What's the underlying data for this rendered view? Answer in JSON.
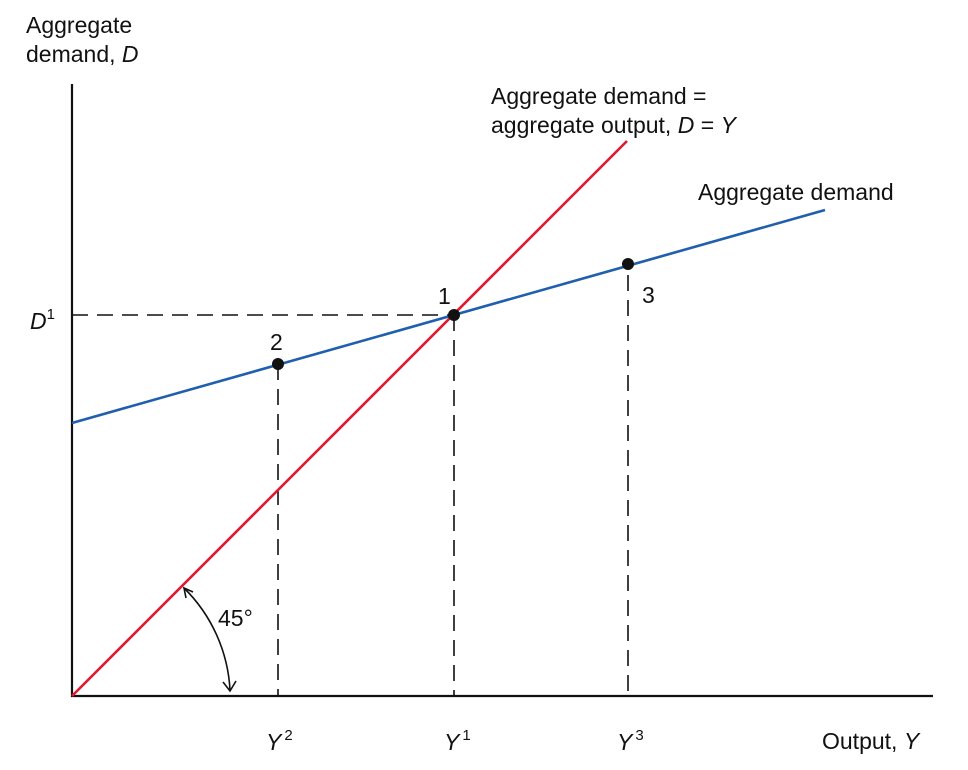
{
  "diagram": {
    "y_axis_title_line1": "Aggregate",
    "y_axis_title_line2": "demand,",
    "y_axis_symbol": "D",
    "x_axis_title": "Output,",
    "x_axis_symbol": "Y",
    "equality_line_label_line1": "Aggregate demand =",
    "equality_line_label_line2": "aggregate output,",
    "equality_line_eq_lhs": "D",
    "equality_line_eq_sign": "=",
    "equality_line_eq_rhs": "Y",
    "demand_line_label": "Aggregate demand",
    "angle_label": "45°",
    "y_tick_symbol": "D",
    "y_tick_sup": "1",
    "x_ticks": [
      {
        "symbol": "Y",
        "sup": "2"
      },
      {
        "symbol": "Y",
        "sup": "1"
      },
      {
        "symbol": "Y",
        "sup": "3"
      }
    ],
    "points": [
      {
        "label": "1"
      },
      {
        "label": "2"
      },
      {
        "label": "3"
      }
    ],
    "colors": {
      "equality_line": "#e0192e",
      "demand_line": "#1f5fad",
      "axes": "#111111",
      "points": "#111111"
    }
  }
}
